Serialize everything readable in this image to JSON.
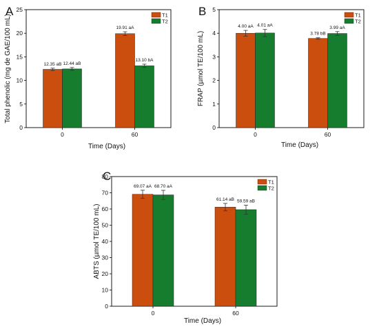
{
  "colors": {
    "T1": "#cc4e0f",
    "T2": "#177d2e"
  },
  "chart_data": [
    {
      "panel": "A",
      "type": "bar",
      "categories": [
        "0",
        "60"
      ],
      "series": [
        {
          "name": "T1",
          "values": [
            12.35,
            19.91
          ],
          "errors": [
            0.25,
            0.4
          ],
          "labels": [
            "12.35 aB",
            "19.91 aA"
          ]
        },
        {
          "name": "T2",
          "values": [
            12.44,
            13.1
          ],
          "errors": [
            0.3,
            0.35
          ],
          "labels": [
            "12.44 aB",
            "13.10 bA"
          ]
        }
      ],
      "xlabel": "Time (Days)",
      "ylabel": "Total phenolic (mg de GAE/100 mL)",
      "ylim": [
        0,
        25
      ],
      "yticks": [
        "0",
        "5",
        "10",
        "15",
        "20",
        "25"
      ],
      "legend": "top-right"
    },
    {
      "panel": "B",
      "type": "bar",
      "categories": [
        "0",
        "60"
      ],
      "series": [
        {
          "name": "T1",
          "values": [
            4.0,
            3.78
          ],
          "errors": [
            0.12,
            0.03
          ],
          "labels": [
            "4.00 aA",
            "3.78 bB"
          ]
        },
        {
          "name": "T2",
          "values": [
            4.01,
            3.99
          ],
          "errors": [
            0.15,
            0.08
          ],
          "labels": [
            "4.01 aA",
            "3.99 aA"
          ]
        }
      ],
      "xlabel": "Time (Days)",
      "ylabel": "FRAP (µmol TE/100 mL)",
      "ylim": [
        0,
        5
      ],
      "yticks": [
        "0",
        "1",
        "2",
        "3",
        "4",
        "5"
      ],
      "legend": "top-right"
    },
    {
      "panel": "C",
      "type": "bar",
      "categories": [
        "0",
        "60"
      ],
      "series": [
        {
          "name": "T1",
          "values": [
            69.07,
            61.14
          ],
          "errors": [
            2.5,
            2.3
          ],
          "labels": [
            "69.07 aA",
            "61.14 aB"
          ]
        },
        {
          "name": "T2",
          "values": [
            68.7,
            59.59
          ],
          "errors": [
            2.8,
            2.8
          ],
          "labels": [
            "68.70 aA",
            "59.59 aB"
          ]
        }
      ],
      "xlabel": "Time (Days)",
      "ylabel": "ABTS (µmol TE/100 mL)",
      "ylim": [
        0,
        80
      ],
      "yticks": [
        "0",
        "10",
        "20",
        "30",
        "40",
        "50",
        "60",
        "70",
        "80"
      ],
      "legend": "top-right"
    }
  ]
}
